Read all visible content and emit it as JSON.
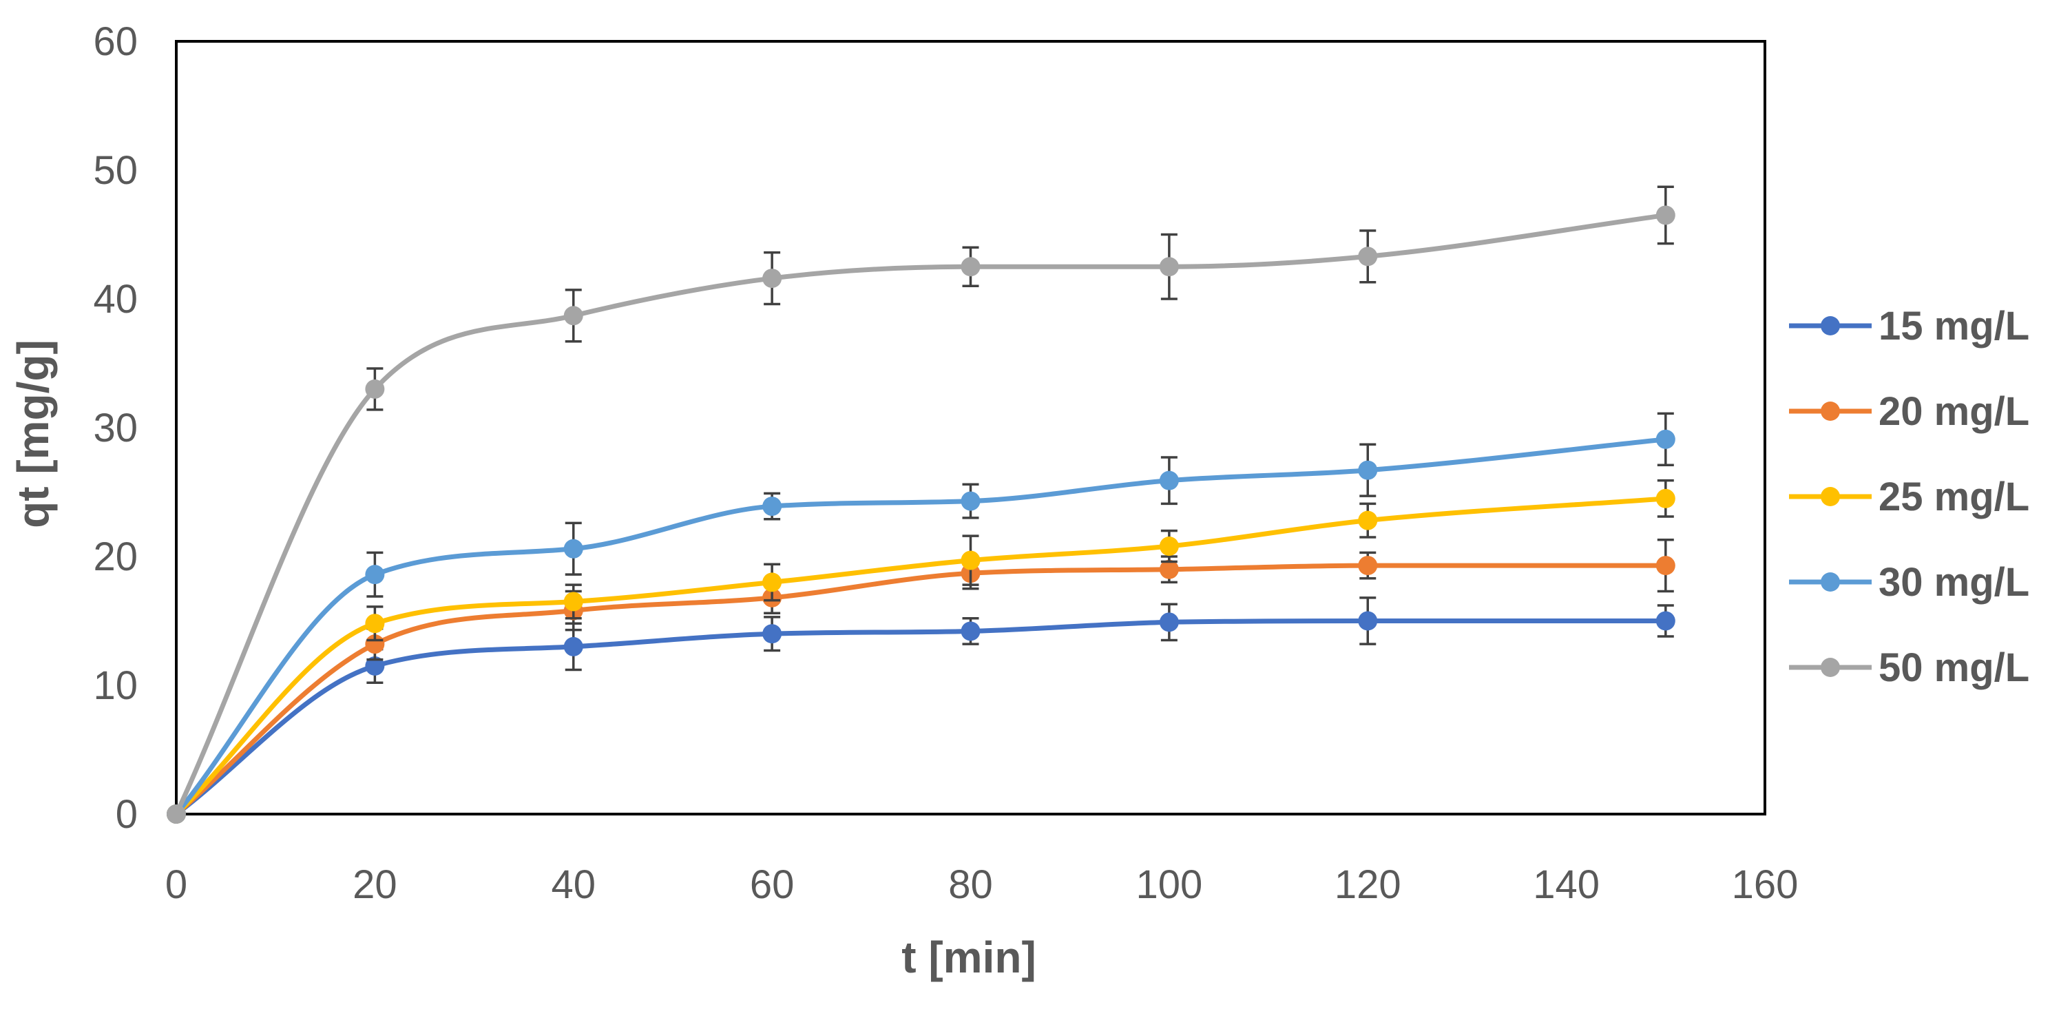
{
  "chart_data": {
    "type": "line",
    "smooth": true,
    "title": "",
    "xlabel": "t [min]",
    "ylabel": "qt  [mg/g]",
    "xlim": [
      0,
      160
    ],
    "ylim": [
      0,
      60
    ],
    "xticks": [
      0,
      20,
      40,
      60,
      80,
      100,
      120,
      140,
      160
    ],
    "yticks": [
      0,
      10,
      20,
      30,
      40,
      50,
      60
    ],
    "grid": false,
    "legend_position": "right",
    "x": [
      0,
      20,
      40,
      60,
      80,
      100,
      120,
      150
    ],
    "series": [
      {
        "name": "15 mg/L",
        "color": "#4472C4",
        "values": [
          0,
          11.5,
          13.0,
          14.0,
          14.2,
          14.9,
          15.0,
          15.0
        ],
        "errors": [
          0,
          1.3,
          1.8,
          1.3,
          1.0,
          1.4,
          1.8,
          1.2
        ]
      },
      {
        "name": "20 mg/L",
        "color": "#ED7D31",
        "values": [
          0,
          13.2,
          15.8,
          16.8,
          18.7,
          19.0,
          19.3,
          19.3
        ],
        "errors": [
          0,
          1.2,
          1.5,
          1.2,
          1.2,
          1.0,
          1.0,
          2.0
        ]
      },
      {
        "name": "25 mg/L",
        "color": "#FFC000",
        "values": [
          0,
          14.8,
          16.5,
          18.0,
          19.7,
          20.8,
          22.8,
          24.5
        ],
        "errors": [
          0,
          1.3,
          1.3,
          1.4,
          1.9,
          1.2,
          1.3,
          1.4
        ]
      },
      {
        "name": "30 mg/L",
        "color": "#5B9BD5",
        "values": [
          0,
          18.6,
          20.6,
          23.9,
          24.3,
          25.9,
          26.7,
          29.1
        ],
        "errors": [
          0,
          1.7,
          2.0,
          1.0,
          1.3,
          1.8,
          2.0,
          2.0
        ]
      },
      {
        "name": "50 mg/L",
        "color": "#A5A5A5",
        "values": [
          0,
          33.0,
          38.7,
          41.6,
          42.5,
          42.5,
          43.3,
          46.5
        ],
        "errors": [
          0,
          1.6,
          2.0,
          2.0,
          1.5,
          2.5,
          2.0,
          2.2
        ]
      }
    ]
  }
}
